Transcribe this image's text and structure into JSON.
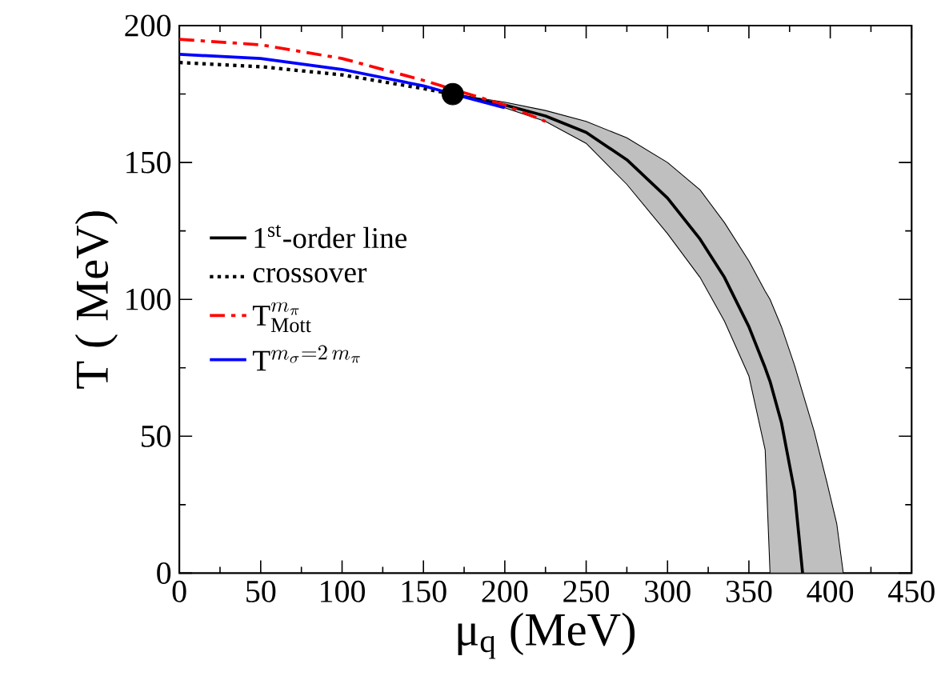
{
  "chart_data": {
    "type": "line",
    "xlabel": "μ$_{q}$ (MeV)",
    "ylabel": "T ( MeV)",
    "xlim": [
      0,
      450
    ],
    "ylim": [
      0,
      200
    ],
    "xticks": [
      0,
      50,
      100,
      150,
      200,
      250,
      300,
      350,
      400,
      450
    ],
    "yticks": [
      0,
      50,
      100,
      150,
      200
    ],
    "legend": "left",
    "grid": false,
    "series": [
      {
        "name": "\\mathrm{1^{st}\\mbox{-order line}}",
        "color": "#000000",
        "line_style": "solid",
        "x": [
          168,
          200,
          225,
          250,
          275,
          300,
          320,
          335,
          350,
          360,
          363,
          370,
          378,
          383,
          390,
          398,
          404,
          408
        ],
        "values": [
          175,
          171,
          167,
          161,
          151,
          137,
          122,
          108,
          90,
          75,
          70,
          55,
          30,
          0,
          null,
          null,
          null,
          null
        ],
        "lower": [
          175,
          170,
          165,
          157,
          142,
          124,
          108,
          92,
          72,
          45,
          0,
          0,
          0,
          0,
          0,
          0,
          0,
          0
        ],
        "upper": [
          175,
          172,
          169,
          165,
          159,
          150,
          140,
          128,
          114,
          103,
          100,
          90,
          76,
          66,
          52,
          33,
          18,
          0
        ]
      },
      {
        "name": "\\mathrm{crossover}",
        "color": "#000000",
        "line_style": "dotted",
        "x": [
          0,
          50,
          100,
          150,
          168
        ],
        "values": [
          186.5,
          185,
          182,
          177,
          175
        ]
      },
      {
        "name": "\\mathrm{T}^{m_{\\pi}}_{\\mathrm{Mott}}",
        "color": "#ff0000",
        "line_style": "dashdot",
        "x": [
          0,
          50,
          100,
          150,
          200,
          225
        ],
        "values": [
          195,
          193,
          188,
          180,
          171,
          165
        ]
      },
      {
        "name": "\\mathrm{T}^{m_{\\sigma}= 2\\, m_{\\pi}}",
        "color": "#0000ff",
        "line_style": "solid",
        "x": [
          0,
          50,
          100,
          150,
          168,
          200
        ],
        "values": [
          189.5,
          188,
          184,
          178,
          175,
          170
        ]
      },
      {
        "type": "scatter",
        "marker": "circle",
        "color": "#000000",
        "x": [
          168
        ],
        "values": [
          175
        ]
      }
    ]
  }
}
